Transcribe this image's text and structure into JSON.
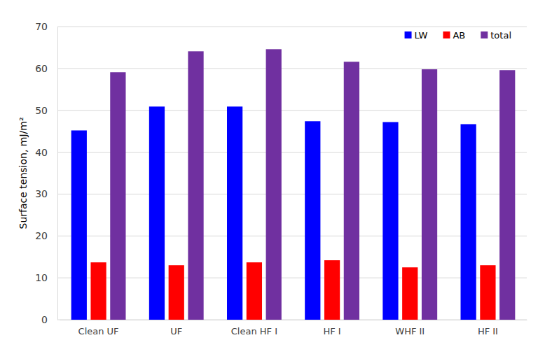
{
  "chart_data": {
    "type": "bar",
    "y_label": "Surface tension, mJ/m²",
    "categories": [
      "Clean UF",
      "UF",
      "Clean HF I",
      "HF I",
      "WHF II",
      "HF II"
    ],
    "series": [
      {
        "name": "LW",
        "color": "#0000ff",
        "values": [
          45.2,
          50.9,
          50.9,
          47.4,
          47.2,
          46.7
        ]
      },
      {
        "name": "AB",
        "color": "#ff0000",
        "values": [
          13.7,
          13.0,
          13.7,
          14.2,
          12.5,
          13.0
        ]
      },
      {
        "name": "total",
        "color": "#7030a0",
        "values": [
          59.1,
          64.1,
          64.6,
          61.6,
          59.8,
          59.6
        ]
      }
    ],
    "ylim": [
      0,
      70
    ],
    "yticks": [
      0,
      10,
      20,
      30,
      40,
      50,
      60,
      70
    ],
    "grid": true,
    "legend": "top-right"
  }
}
